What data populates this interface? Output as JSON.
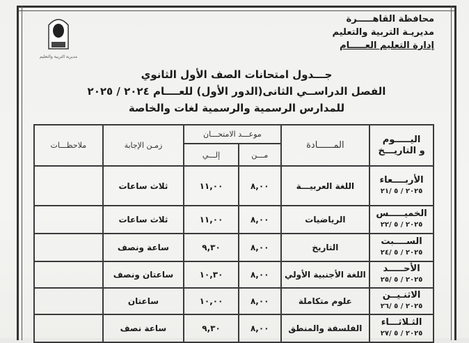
{
  "header": {
    "org_lines": [
      "محافظة القاهـــــرة",
      "مديريـة التربية والتعليم",
      "إدارة التعليم العـــــام"
    ],
    "logo_text": "مديرية التربية والتعليم"
  },
  "titles": [
    "جـــدول امتحانات الصف الأول الثانوي",
    "الفصل الدراســي الثانى(الدور الأول) للعــــام ٢٠٢٤ / ٢٠٢٥",
    "للمدارس الرسمية والرسمية لغات والخاصة"
  ],
  "table": {
    "headers": {
      "day": "اليـــــوم",
      "day2": "و التاريـــخ",
      "subject": "المــــــادة",
      "schedule": "موعـــد الامتحـــان",
      "from": "مـــن",
      "to": "إلـــي",
      "duration": "زمـن الإجابة",
      "notes": "ملاحظـــات"
    },
    "rows": [
      {
        "day": "الأربــــعاء",
        "date": "٢٠٢٥ / ٥ /٢١",
        "subject": "اللغة العربيـــة",
        "from": "٨,٠٠",
        "to": "١١,٠٠",
        "duration": "ثلاث ساعات",
        "notes": ""
      },
      {
        "day": "الخميـــــس",
        "date": "٢٠٢٥ / ٥ /٢٢",
        "subject": "الرياضيات",
        "from": "٨,٠٠",
        "to": "١١,٠٠",
        "duration": "ثلاث ساعات",
        "notes": ""
      },
      {
        "day": "الســــبت",
        "date": "٢٠٢٥ / ٥ /٢٤",
        "subject": "التاريخ",
        "from": "٨,٠٠",
        "to": "٩,٣٠",
        "duration": "ساعة ونصف",
        "notes": ""
      },
      {
        "day": "الأحـــــد",
        "date": "٢٠٢٥ / ٥ /٢٥",
        "subject": "اللغة الأجنبية الأولي",
        "from": "٨,٠٠",
        "to": "١٠,٣٠",
        "duration": "ساعتان ونصف",
        "notes": ""
      },
      {
        "day": "الاثنـيــن",
        "date": "٢٠٢٥ / ٥ /٢٦",
        "subject": "علوم متكاملة",
        "from": "٨,٠٠",
        "to": "١٠,٠٠",
        "duration": "ساعتان",
        "notes": ""
      },
      {
        "day": "الثـلاثـــاء",
        "date": "٢٠٢٥ / ٥ /٢٧",
        "subject": "الفلسفة والمنطق",
        "from": "٨,٠٠",
        "to": "٩,٣٠",
        "duration": "ساعة نصف",
        "notes": ""
      }
    ]
  }
}
